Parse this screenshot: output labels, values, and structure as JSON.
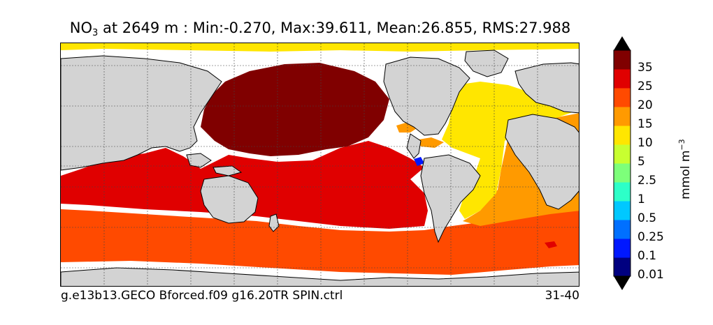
{
  "title": {
    "variable": "NO",
    "subscript": "3",
    "rest": " at 2649 m : Min:-0.270, Max:39.611, Mean:26.855, RMS:27.988"
  },
  "footer": {
    "case_name": "g.e13b13.GECO Bforced.f09 g16.20TR SPIN.ctrl",
    "years": "31-40"
  },
  "colorbar": {
    "unit_base": "mmol m",
    "unit_exponent": "−3",
    "labels": [
      "35",
      "25",
      "20",
      "15",
      "10",
      "5",
      "2.5",
      "1",
      "0.5",
      "0.25",
      "0.1",
      "0.01"
    ],
    "colors": [
      "#000080",
      "#0018ff",
      "#0070ff",
      "#00c8ff",
      "#2dffc8",
      "#7dff7a",
      "#c8ff30",
      "#ffe600",
      "#ff9a00",
      "#ff4a00",
      "#e00000",
      "#800000"
    ],
    "extend": "both"
  },
  "map": {
    "land_color": "#d3d3d3",
    "missing_color": "#ffffff",
    "grid": true
  }
}
